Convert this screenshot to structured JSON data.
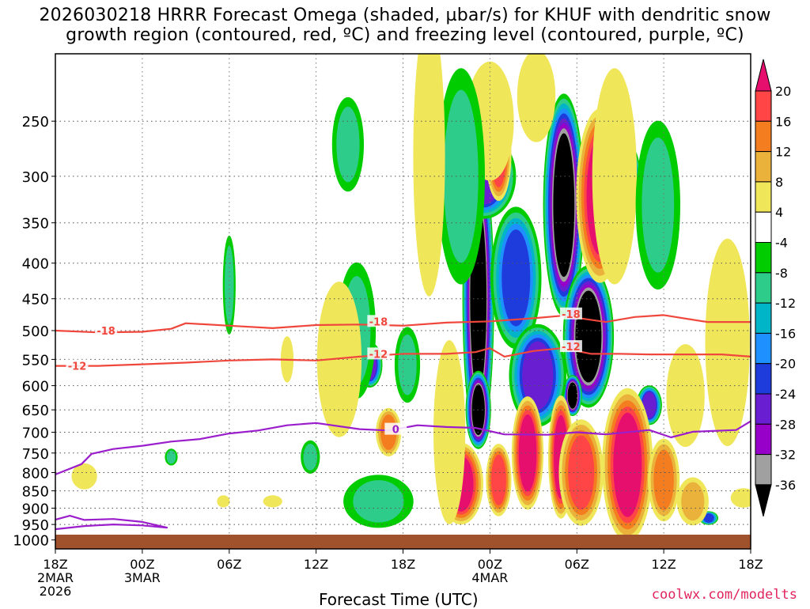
{
  "title_line1": "2026030218 HRRR Forecast Omega (shaded, µbar/s) for KHUF with dendritic snow",
  "title_line2": "growth region (contoured, red, ºC) and freezing level (contoured, purple, ºC)",
  "credit": "coolwx.com/modelts",
  "chart_data": {
    "type": "heatmap",
    "title": "2026030218 HRRR Forecast Omega (shaded, µbar/s) for KHUF with dendritic snow growth region (contoured, red, ºC) and freezing level (contoured, purple, ºC)",
    "xlabel": "Forecast Time (UTC)",
    "ylabel": "",
    "x_ticks": [
      {
        "hour": 0,
        "label": [
          "18Z",
          "2MAR",
          "2026"
        ]
      },
      {
        "hour": 6,
        "label": [
          "00Z",
          "3MAR"
        ]
      },
      {
        "hour": 12,
        "label": [
          "06Z"
        ]
      },
      {
        "hour": 18,
        "label": [
          "12Z"
        ]
      },
      {
        "hour": 24,
        "label": [
          "18Z"
        ]
      },
      {
        "hour": 30,
        "label": [
          "00Z",
          "4MAR"
        ]
      },
      {
        "hour": 36,
        "label": [
          "06Z"
        ]
      },
      {
        "hour": 42,
        "label": [
          "12Z"
        ]
      },
      {
        "hour": 48,
        "label": [
          "18Z"
        ]
      }
    ],
    "x_range_hours": [
      0,
      48
    ],
    "y_ticks": [
      250,
      300,
      350,
      400,
      450,
      500,
      550,
      600,
      650,
      700,
      750,
      800,
      850,
      900,
      950,
      1000
    ],
    "y_range_hpa": [
      200,
      1030
    ],
    "y_scale": "log-pressure",
    "grid": true,
    "colorbar": {
      "labels": [
        "20",
        "16",
        "12",
        "8",
        "4",
        "-4",
        "-8",
        "-12",
        "-16",
        "-20",
        "-24",
        "-28",
        "-32",
        "-36"
      ],
      "colors": [
        "#e60f6e",
        "#ff4545",
        "#f47d1f",
        "#eab23a",
        "#f0e65a",
        "#ffffff",
        "#00cc00",
        "#2ecc8a",
        "#00b5c8",
        "#1e90ff",
        "#1e3cdc",
        "#6a1ed2",
        "#9600c8",
        "#a0a0a0",
        "#000000"
      ]
    },
    "omega_cells": [
      {
        "h": 29.2,
        "p": 450,
        "dh": 1.0,
        "dp": 300,
        "v": -40
      },
      {
        "h": 29.2,
        "p": 650,
        "dh": 0.8,
        "dp": 120,
        "v": -40
      },
      {
        "h": 35.1,
        "p": 330,
        "dh": 1.3,
        "dp": 170,
        "v": -40
      },
      {
        "h": 36.8,
        "p": 510,
        "dh": 1.6,
        "dp": 170,
        "v": -40
      },
      {
        "h": 35.7,
        "p": 620,
        "dh": 0.6,
        "dp": 60,
        "v": -40
      },
      {
        "h": 29.6,
        "p": 300,
        "dh": 2.0,
        "dp": 60,
        "v": -24
      },
      {
        "h": 31.8,
        "p": 420,
        "dh": 1.6,
        "dp": 140,
        "v": -20
      },
      {
        "h": 33.3,
        "p": 580,
        "dh": 1.8,
        "dp": 140,
        "v": -24
      },
      {
        "h": 39.3,
        "p": 300,
        "dh": 1.0,
        "dp": 50,
        "v": -28
      },
      {
        "h": 41.0,
        "p": 640,
        "dh": 0.8,
        "dp": 60,
        "v": -24
      },
      {
        "h": 21.7,
        "p": 560,
        "dh": 0.8,
        "dp": 60,
        "v": -24
      },
      {
        "h": 22.0,
        "p": 880,
        "dh": 1.2,
        "dp": 40,
        "v": -16
      },
      {
        "h": 45.1,
        "p": 930,
        "dh": 0.6,
        "dp": 30,
        "v": -20
      },
      {
        "h": 30.6,
        "p": 280,
        "dh": 0.8,
        "dp": 60,
        "v": 16
      },
      {
        "h": 37.6,
        "p": 320,
        "dh": 1.5,
        "dp": 130,
        "v": 20
      },
      {
        "h": 28.0,
        "p": 830,
        "dh": 1.4,
        "dp": 160,
        "v": 20
      },
      {
        "h": 30.6,
        "p": 820,
        "dh": 0.8,
        "dp": 140,
        "v": 16
      },
      {
        "h": 32.6,
        "p": 750,
        "dh": 1.0,
        "dp": 200,
        "v": 20
      },
      {
        "h": 34.9,
        "p": 760,
        "dh": 0.8,
        "dp": 220,
        "v": 20
      },
      {
        "h": 36.3,
        "p": 800,
        "dh": 1.4,
        "dp": 200,
        "v": 16
      },
      {
        "h": 39.5,
        "p": 780,
        "dh": 1.6,
        "dp": 280,
        "v": 20
      },
      {
        "h": 42.0,
        "p": 820,
        "dh": 1.0,
        "dp": 160,
        "v": 12
      },
      {
        "h": 44.0,
        "p": 880,
        "dh": 1.0,
        "dp": 100,
        "v": 8
      },
      {
        "h": 23.0,
        "p": 700,
        "dh": 0.8,
        "dp": 80,
        "v": 12
      },
      {
        "h": 30.0,
        "p": 250,
        "dh": 1.5,
        "dp": 70,
        "v": 6
      },
      {
        "h": 38.6,
        "p": 300,
        "dh": 1.4,
        "dp": 150,
        "v": 6
      },
      {
        "h": 33.2,
        "p": 230,
        "dh": 1.2,
        "dp": 50,
        "v": 6
      },
      {
        "h": 41.6,
        "p": 330,
        "dh": 1.4,
        "dp": 130,
        "v": -8
      },
      {
        "h": 20.8,
        "p": 500,
        "dh": 1.2,
        "dp": 160,
        "v": -8
      },
      {
        "h": 24.3,
        "p": 560,
        "dh": 0.8,
        "dp": 100,
        "v": -8
      },
      {
        "h": 20.2,
        "p": 270,
        "dh": 1.0,
        "dp": 60,
        "v": -8
      },
      {
        "h": 22.3,
        "p": 880,
        "dh": 2.2,
        "dp": 110,
        "v": -8
      },
      {
        "h": 28.0,
        "p": 300,
        "dh": 1.5,
        "dp": 150,
        "v": -8
      },
      {
        "h": 27.2,
        "p": 700,
        "dh": 1.0,
        "dp": 300,
        "v": 4
      },
      {
        "h": 19.6,
        "p": 550,
        "dh": 1.4,
        "dp": 200,
        "v": 4
      },
      {
        "h": 46.4,
        "p": 520,
        "dh": 1.4,
        "dp": 250,
        "v": 4
      },
      {
        "h": 25.8,
        "p": 280,
        "dh": 1.0,
        "dp": 180,
        "v": 4
      },
      {
        "h": 43.5,
        "p": 620,
        "dh": 1.2,
        "dp": 150,
        "v": 6
      },
      {
        "h": 2.0,
        "p": 810,
        "dh": 0.8,
        "dp": 50,
        "v": 6
      },
      {
        "h": 12.0,
        "p": 430,
        "dh": 0.4,
        "dp": 100,
        "v": -8
      },
      {
        "h": 8.0,
        "p": 760,
        "dh": 0.4,
        "dp": 30,
        "v": -8
      },
      {
        "h": 17.6,
        "p": 760,
        "dh": 0.6,
        "dp": 60,
        "v": -8
      },
      {
        "h": 16.0,
        "p": 550,
        "dh": 0.4,
        "dp": 60,
        "v": 4
      },
      {
        "h": 15.0,
        "p": 880,
        "dh": 0.6,
        "dp": 25,
        "v": 4
      },
      {
        "h": 11.6,
        "p": 880,
        "dh": 0.4,
        "dp": 25,
        "v": 4
      },
      {
        "h": 47.5,
        "p": 870,
        "dh": 0.8,
        "dp": 40,
        "v": 4
      }
    ],
    "contours": [
      {
        "name": "-18",
        "color": "#f0473d",
        "label": "-18",
        "label_points": [
          {
            "h": 3.5,
            "p": 500
          },
          {
            "h": 22.3,
            "p": 485
          },
          {
            "h": 35.6,
            "p": 473
          }
        ],
        "points": [
          [
            0,
            500
          ],
          [
            3,
            503
          ],
          [
            6,
            502
          ],
          [
            8,
            497
          ],
          [
            9,
            488
          ],
          [
            12,
            492
          ],
          [
            15,
            496
          ],
          [
            18,
            491
          ],
          [
            21,
            490
          ],
          [
            24,
            492
          ],
          [
            27,
            487
          ],
          [
            30,
            485
          ],
          [
            33,
            480
          ],
          [
            35,
            476
          ],
          [
            38,
            486
          ],
          [
            40,
            478
          ],
          [
            42,
            475
          ],
          [
            45,
            486
          ],
          [
            48,
            486
          ]
        ]
      },
      {
        "name": "-12",
        "color": "#f0473d",
        "label": "-12",
        "label_points": [
          {
            "h": 1.5,
            "p": 562
          },
          {
            "h": 22.3,
            "p": 540
          },
          {
            "h": 35.6,
            "p": 527
          }
        ],
        "points": [
          [
            0,
            562
          ],
          [
            3,
            562
          ],
          [
            6,
            559
          ],
          [
            9,
            556
          ],
          [
            12,
            552
          ],
          [
            15,
            550
          ],
          [
            18,
            552
          ],
          [
            21,
            545
          ],
          [
            24,
            540
          ],
          [
            27,
            540
          ],
          [
            29,
            537
          ],
          [
            30,
            530
          ],
          [
            31,
            545
          ],
          [
            33,
            535
          ],
          [
            35,
            530
          ],
          [
            37,
            540
          ],
          [
            39,
            540
          ],
          [
            41,
            541
          ],
          [
            43,
            541
          ],
          [
            46,
            541
          ],
          [
            48,
            545
          ]
        ]
      },
      {
        "name": "0",
        "color": "#9b1ecc",
        "label": "0",
        "label_points": [
          {
            "h": 23.5,
            "p": 693
          }
        ],
        "points": [
          [
            0,
            805
          ],
          [
            1.8,
            778
          ],
          [
            2.5,
            752
          ],
          [
            4,
            740
          ],
          [
            6,
            732
          ],
          [
            8,
            722
          ],
          [
            10,
            716
          ],
          [
            12,
            703
          ],
          [
            14,
            696
          ],
          [
            16,
            684
          ],
          [
            18,
            679
          ],
          [
            21,
            693
          ],
          [
            23,
            696
          ],
          [
            25,
            684
          ],
          [
            27,
            688
          ],
          [
            29,
            690
          ],
          [
            31,
            705
          ],
          [
            34,
            706
          ],
          [
            36,
            700
          ],
          [
            38,
            705
          ],
          [
            41,
            695
          ],
          [
            42.5,
            712
          ],
          [
            44,
            699
          ],
          [
            47,
            695
          ],
          [
            48,
            675
          ]
        ]
      },
      {
        "name": "freezing-lower",
        "color": "#9b1ecc",
        "label": "",
        "label_points": [],
        "points": [
          [
            0,
            965
          ],
          [
            2,
            955
          ],
          [
            4,
            950
          ],
          [
            6,
            953
          ],
          [
            7.7,
            960
          ],
          [
            6,
            942
          ],
          [
            4,
            933
          ],
          [
            2,
            936
          ],
          [
            1,
            923
          ],
          [
            0,
            935
          ]
        ]
      }
    ]
  }
}
